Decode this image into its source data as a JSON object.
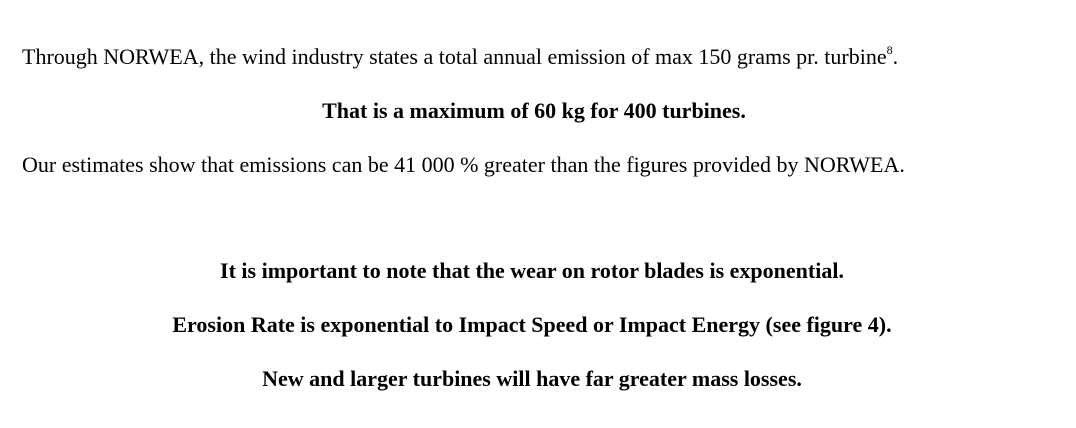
{
  "paragraphs": {
    "p1_text": "Through NORWEA, the wind industry states a total annual emission of max 150 grams pr.  turbine",
    "p1_footnote": "8",
    "p1_end": ".",
    "p2": "That is a maximum of 60 kg for 400 turbines.",
    "p3": "Our estimates show that emissions can be 41 000 % greater than the figures provided by NORWEA.",
    "p4": "It is important to note that the wear on rotor blades is exponential.",
    "p5": "Erosion Rate is exponential to Impact Speed or Impact Energy (see figure 4).",
    "p6": "New and larger turbines will have far greater mass losses."
  }
}
